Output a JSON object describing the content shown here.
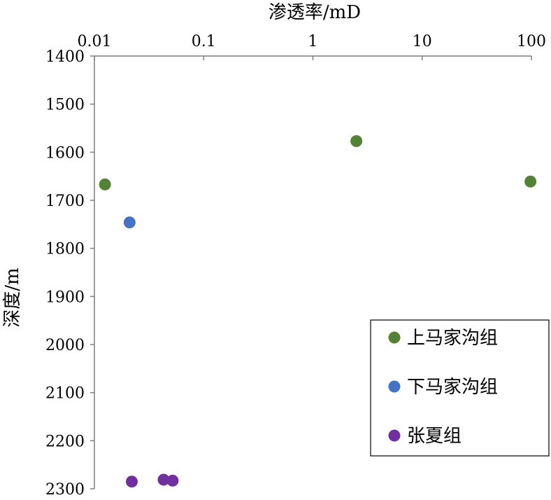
{
  "chart_data": {
    "type": "scatter",
    "xlabel": "渗透率/mD",
    "ylabel": "深度/m",
    "x_scale": "log",
    "x_position": "top",
    "y_inverted": true,
    "xlim": [
      0.01,
      100
    ],
    "ylim": [
      1400,
      2300
    ],
    "x_ticks": [
      "0.01",
      "0.1",
      "1",
      "10",
      "100"
    ],
    "y_ticks": [
      "1400",
      "1500",
      "1600",
      "1700",
      "1800",
      "1900",
      "2000",
      "2100",
      "2200",
      "2300"
    ],
    "grid": false,
    "legend_position": "bottom-right",
    "series": [
      {
        "name": "上马家沟组",
        "color": "#548235",
        "points": [
          [
            0.0125,
            1667
          ],
          [
            2.5,
            1577
          ],
          [
            98,
            1661
          ]
        ]
      },
      {
        "name": "下马家沟组",
        "color": "#4472c4",
        "points": [
          [
            0.021,
            1746
          ]
        ]
      },
      {
        "name": "张夏组",
        "color": "#7030a0",
        "points": [
          [
            0.022,
            2285
          ],
          [
            0.043,
            2281
          ],
          [
            0.052,
            2283
          ]
        ]
      }
    ]
  }
}
